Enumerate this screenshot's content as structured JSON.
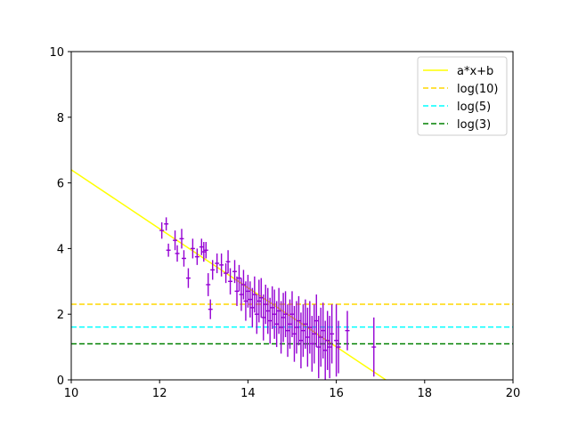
{
  "chart_data": {
    "type": "scatter",
    "xlim": [
      10,
      20
    ],
    "ylim": [
      0,
      10
    ],
    "x_ticks": [
      "10",
      "12",
      "14",
      "16",
      "18",
      "20"
    ],
    "y_ticks": [
      "0",
      "2",
      "4",
      "6",
      "8",
      "10"
    ],
    "grid": false,
    "legend_position": "top-right",
    "series": [
      {
        "name": "a*x+b",
        "kind": "fit-line",
        "color": "#ffff00",
        "style": "solid",
        "x": [
          10,
          17.12
        ],
        "y": [
          6.4,
          0
        ]
      },
      {
        "name": "log(10)",
        "kind": "hline",
        "color": "#ffd700",
        "style": "dashed",
        "y": 2.303
      },
      {
        "name": "log(5)",
        "kind": "hline",
        "color": "#00ffff",
        "style": "dashed",
        "y": 1.609
      },
      {
        "name": "log(3)",
        "kind": "hline",
        "color": "#008000",
        "style": "dashed",
        "y": 1.099
      },
      {
        "kind": "errorbar",
        "color": "#9400d3",
        "x": [
          12.05,
          12.15,
          12.2,
          12.35,
          12.4,
          12.5,
          12.55,
          12.65,
          12.75,
          12.85,
          12.95,
          13.0,
          13.05,
          13.1,
          13.15,
          13.2,
          13.3,
          13.4,
          13.5,
          13.55,
          13.6,
          13.7,
          13.75,
          13.8,
          13.85,
          13.9,
          13.95,
          14.0,
          14.05,
          14.1,
          14.15,
          14.2,
          14.25,
          14.3,
          14.35,
          14.4,
          14.45,
          14.5,
          14.55,
          14.6,
          14.65,
          14.7,
          14.75,
          14.8,
          14.85,
          14.9,
          14.95,
          15.0,
          15.05,
          15.1,
          15.15,
          15.2,
          15.25,
          15.3,
          15.35,
          15.4,
          15.45,
          15.5,
          15.55,
          15.6,
          15.65,
          15.7,
          15.75,
          15.8,
          15.85,
          15.9,
          16.0,
          16.05,
          16.25,
          16.85
        ],
        "y": [
          4.55,
          4.75,
          3.95,
          4.25,
          3.85,
          4.3,
          3.7,
          3.1,
          4.0,
          3.75,
          4.05,
          3.9,
          3.95,
          2.9,
          2.15,
          3.35,
          3.55,
          3.5,
          3.25,
          3.6,
          3.0,
          3.3,
          2.7,
          3.1,
          2.6,
          2.9,
          2.4,
          2.7,
          2.45,
          2.2,
          2.6,
          2.0,
          2.4,
          2.5,
          1.9,
          2.3,
          2.1,
          1.8,
          2.2,
          2.0,
          1.7,
          2.1,
          1.6,
          1.9,
          2.0,
          1.5,
          1.7,
          2.0,
          1.4,
          1.6,
          1.8,
          1.2,
          1.5,
          1.7,
          1.3,
          1.6,
          1.1,
          1.4,
          1.8,
          1.0,
          1.3,
          1.5,
          0.9,
          1.2,
          1.0,
          1.4,
          1.2,
          1.0,
          1.5,
          1.0
        ],
        "yerr": [
          0.25,
          0.2,
          0.2,
          0.3,
          0.25,
          0.3,
          0.25,
          0.3,
          0.3,
          0.25,
          0.25,
          0.3,
          0.25,
          0.35,
          0.3,
          0.3,
          0.3,
          0.35,
          0.3,
          0.35,
          0.4,
          0.35,
          0.45,
          0.4,
          0.5,
          0.45,
          0.6,
          0.5,
          0.55,
          0.6,
          0.55,
          0.6,
          0.65,
          0.6,
          0.7,
          0.6,
          0.7,
          0.7,
          0.65,
          0.75,
          0.7,
          0.7,
          0.8,
          0.75,
          0.7,
          0.8,
          0.75,
          0.7,
          0.85,
          0.8,
          0.75,
          0.85,
          0.8,
          0.75,
          0.9,
          0.8,
          0.85,
          0.9,
          0.8,
          0.95,
          0.9,
          0.85,
          0.9,
          0.9,
          0.95,
          0.9,
          1.1,
          0.8,
          0.6,
          0.9
        ],
        "xerr": [
          0.05,
          0.05,
          0.05,
          0.05,
          0.05,
          0.05,
          0.05,
          0.05,
          0.05,
          0.05,
          0.05,
          0.05,
          0.05,
          0.05,
          0.05,
          0.05,
          0.05,
          0.05,
          0.05,
          0.05,
          0.05,
          0.05,
          0.05,
          0.05,
          0.05,
          0.05,
          0.05,
          0.05,
          0.05,
          0.05,
          0.05,
          0.05,
          0.05,
          0.05,
          0.05,
          0.05,
          0.05,
          0.05,
          0.05,
          0.05,
          0.05,
          0.05,
          0.05,
          0.05,
          0.05,
          0.05,
          0.05,
          0.05,
          0.05,
          0.05,
          0.05,
          0.05,
          0.05,
          0.05,
          0.05,
          0.05,
          0.05,
          0.05,
          0.05,
          0.05,
          0.05,
          0.05,
          0.05,
          0.05,
          0.05,
          0.05,
          0.05,
          0.05,
          0.05,
          0.05
        ]
      }
    ]
  }
}
